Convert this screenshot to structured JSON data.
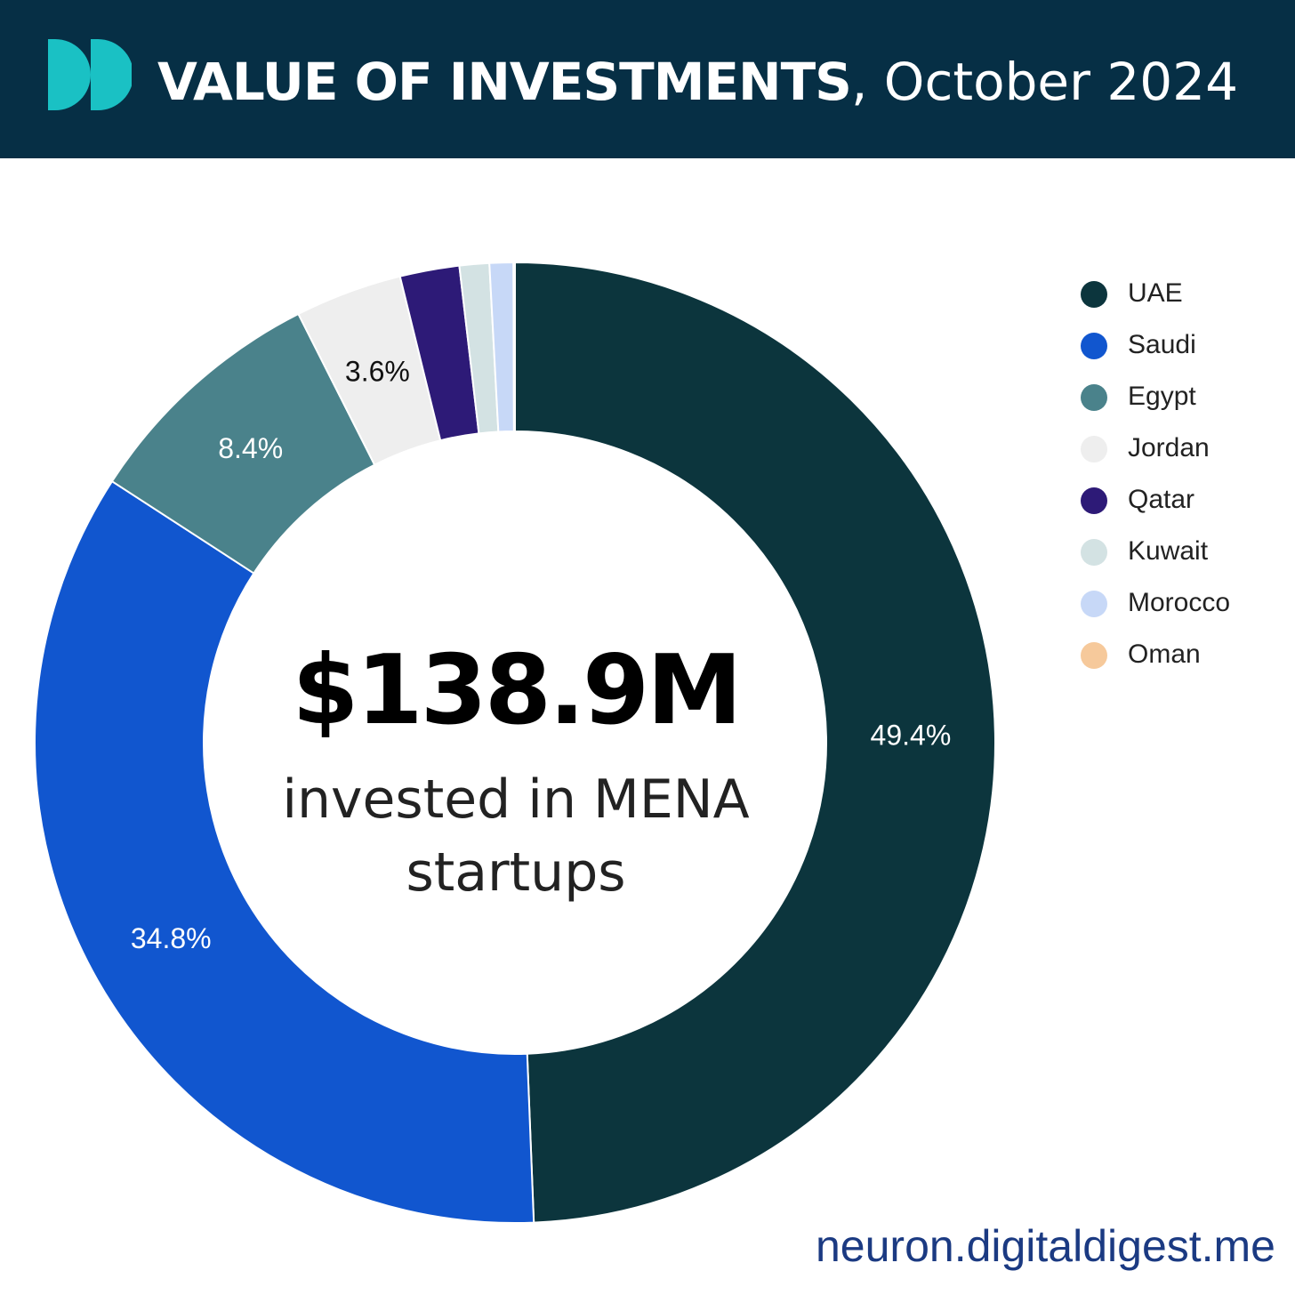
{
  "header": {
    "title_bold": "VALUE OF INVESTMENTS",
    "title_rest": ", October 2024",
    "logo_icon": "double-half-circle-logo-icon",
    "logo_color": "#1ac1c4",
    "background_color": "#062f45"
  },
  "center": {
    "value": "$138.9M",
    "caption_line1": "invested in MENA",
    "caption_line2": "startups"
  },
  "footer": {
    "text": "neuron.digitaldigest.me"
  },
  "chart_data": {
    "type": "pie",
    "style": "donut",
    "start_angle_deg": 0,
    "direction": "clockwise",
    "legend_position": "right",
    "series": [
      {
        "name": "UAE",
        "value": 49.4,
        "label": "49.4%",
        "color": "#0c353d",
        "label_color": "#ffffff"
      },
      {
        "name": "Saudi",
        "value": 34.8,
        "label": "34.8%",
        "color": "#1156cf",
        "label_color": "#ffffff"
      },
      {
        "name": "Egypt",
        "value": 8.4,
        "label": "8.4%",
        "color": "#4a828b",
        "label_color": "#ffffff"
      },
      {
        "name": "Jordan",
        "value": 3.6,
        "label": "3.6%",
        "color": "#eeeeee",
        "label_color": "#111111"
      },
      {
        "name": "Qatar",
        "value": 2.0,
        "label": "",
        "color": "#2d1a77",
        "label_color": "#ffffff"
      },
      {
        "name": "Kuwait",
        "value": 1.0,
        "label": "",
        "color": "#d3e2e3",
        "label_color": "#111111"
      },
      {
        "name": "Morocco",
        "value": 0.8,
        "label": "",
        "color": "#c7d8f7",
        "label_color": "#111111"
      },
      {
        "name": "Oman",
        "value": 0.05,
        "label": "",
        "color": "#f6c99b",
        "label_color": "#111111"
      }
    ]
  }
}
